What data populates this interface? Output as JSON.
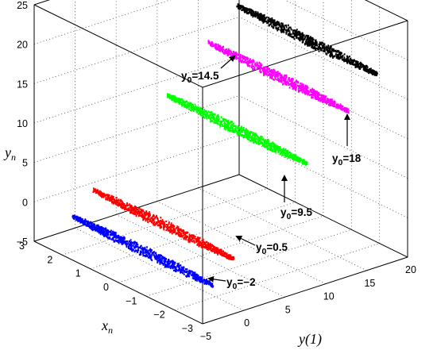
{
  "chart_data": {
    "type": "scatter",
    "grid": true,
    "axes": {
      "y1": {
        "label": "y(1)",
        "lim": [
          -5,
          20
        ],
        "ticks": [
          -5,
          0,
          5,
          10,
          15,
          20
        ]
      },
      "xn": {
        "label": "x_n",
        "lim": [
          -3,
          3
        ],
        "ticks": [
          3,
          2,
          1,
          0,
          -1,
          -2,
          -3
        ]
      },
      "yn": {
        "label": "y_n",
        "lim": [
          -5,
          25
        ],
        "ticks": [
          25,
          20,
          15,
          10,
          5,
          0,
          -5
        ]
      }
    },
    "series": [
      {
        "name": "y0=-2",
        "color": "#0000ff",
        "y1": -2,
        "yn": -2,
        "xn_range": [
          -2.5,
          2.5
        ]
      },
      {
        "name": "y0=0.5",
        "color": "#ff0000",
        "y1": 0.5,
        "yn": 0.5,
        "xn_range": [
          -2.5,
          2.5
        ]
      },
      {
        "name": "y0=9.5",
        "color": "#00ff00",
        "y1": 9.5,
        "yn": 9.5,
        "xn_range": [
          -2.5,
          2.5
        ]
      },
      {
        "name": "y0=14.5",
        "color": "#ff00ff",
        "y1": 14.5,
        "yn": 14.5,
        "xn_range": [
          -2.5,
          2.5
        ]
      },
      {
        "name": "y0=18",
        "color": "#000000",
        "y1": 18,
        "yn": 18,
        "xn_range": [
          -2.5,
          2.5
        ]
      }
    ],
    "annotations": [
      {
        "prefix": "y",
        "sub": "0",
        "value": "=−2"
      },
      {
        "prefix": "y",
        "sub": "0",
        "value": "=0.5"
      },
      {
        "prefix": "y",
        "sub": "0",
        "value": "=9.5"
      },
      {
        "prefix": "y",
        "sub": "0",
        "value": "=14.5"
      },
      {
        "prefix": "y",
        "sub": "0",
        "value": "=18"
      }
    ]
  }
}
